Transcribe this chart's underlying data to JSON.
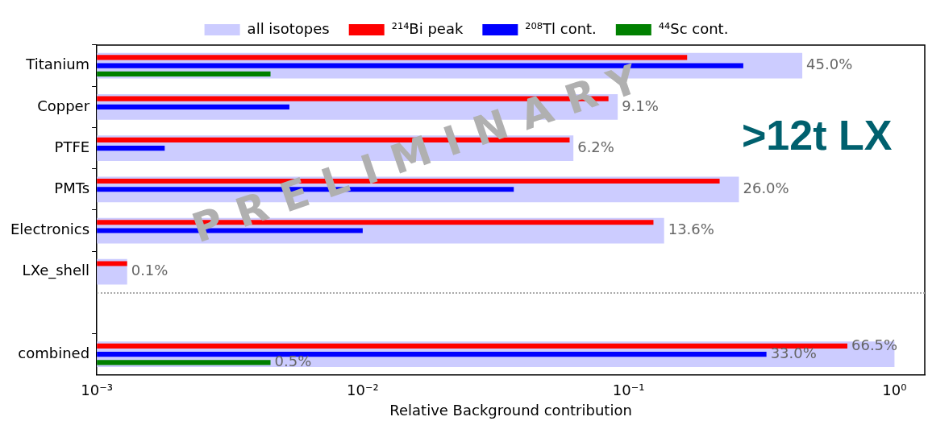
{
  "chart_data": {
    "type": "bar",
    "orientation": "horizontal",
    "log": "x",
    "xlabel": "Relative Background contribution",
    "categories": [
      "Titanium",
      "Copper",
      "PTFE",
      "PMTs",
      "Electronics",
      "LXe_shell",
      null,
      "combined"
    ],
    "xlim": [
      0.001,
      1.3
    ],
    "xticks": [
      {
        "value": 0.001,
        "label": "10⁻³"
      },
      {
        "value": 0.01,
        "label": "10⁻²"
      },
      {
        "value": 0.1,
        "label": "10⁻¹"
      },
      {
        "value": 1,
        "label": "10⁰"
      }
    ],
    "series": [
      {
        "name": "all isotopes",
        "color": "#ccccff",
        "values": [
          0.45,
          0.091,
          0.062,
          0.26,
          0.136,
          0.0013,
          null,
          1.0
        ],
        "value_labels": [
          "45.0%",
          "9.1%",
          "6.2%",
          "26.0%",
          "13.6%",
          "0.1%",
          null,
          null
        ]
      },
      {
        "name": "²¹⁴Bi peak",
        "color": "#ff0000",
        "values": [
          0.166,
          0.084,
          0.06,
          0.22,
          0.124,
          0.0013,
          null,
          0.665
        ],
        "value_labels": [
          null,
          null,
          null,
          null,
          null,
          null,
          null,
          "66.5%"
        ]
      },
      {
        "name": "²⁰⁸Tl cont.",
        "color": "#0000ff",
        "values": [
          0.27,
          0.0053,
          0.0018,
          0.037,
          0.01,
          null,
          null,
          0.33
        ],
        "value_labels": [
          null,
          null,
          null,
          null,
          null,
          null,
          null,
          "33.0%"
        ]
      },
      {
        "name": "⁴⁴Sc cont.",
        "color": "#008000",
        "values": [
          0.0045,
          null,
          null,
          null,
          null,
          null,
          null,
          0.0045
        ],
        "value_labels": [
          null,
          null,
          null,
          null,
          null,
          null,
          null,
          "0.5%"
        ]
      }
    ],
    "legend": "top",
    "grid": false,
    "annotations": [
      "PRELIMINARY",
      ">12t LX"
    ]
  }
}
